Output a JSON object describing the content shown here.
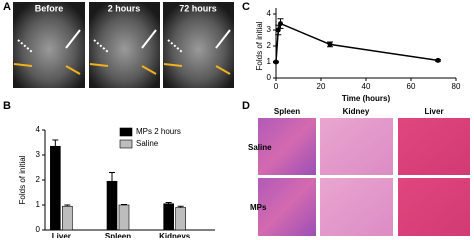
{
  "panels": {
    "labels": [
      "A",
      "B",
      "C",
      "D"
    ],
    "a_timepoints": [
      "Before",
      "2 hours",
      "72 hours"
    ],
    "d_columns": [
      "Spleen",
      "Kidney",
      "Liver"
    ],
    "d_rows": [
      "Saline",
      "MPs"
    ]
  },
  "chart_data": [
    {
      "type": "bar",
      "ylabel": "Folds of initial",
      "categories": [
        "Liver",
        "Spleen",
        "Kidneys"
      ],
      "series": [
        {
          "name": "MPs 2 hours",
          "color": "#000000",
          "values": [
            3.35,
            1.95,
            1.05
          ],
          "errors": [
            0.25,
            0.35,
            0.05
          ]
        },
        {
          "name": "Saline",
          "color": "#bdbdbd",
          "values": [
            0.95,
            1.0,
            0.9
          ],
          "errors": [
            0.05,
            0.02,
            0.05
          ]
        }
      ],
      "ylim": [
        0,
        4
      ],
      "yticks": [
        0,
        1,
        2,
        3,
        4
      ],
      "legend": "upper right"
    },
    {
      "type": "line",
      "xlabel": "Time (hours)",
      "ylabel": "Folds of initial",
      "x": [
        0,
        1,
        2,
        24,
        72
      ],
      "values": [
        1,
        3.0,
        3.4,
        2.1,
        1.1
      ],
      "errors": [
        0.05,
        0.3,
        0.3,
        0.15,
        0.05
      ],
      "color": "#000000",
      "xlim": [
        0,
        80
      ],
      "xticks": [
        0,
        20,
        40,
        60,
        80
      ],
      "ylim": [
        0,
        4
      ],
      "yticks": [
        0,
        1,
        2,
        3,
        4
      ]
    }
  ]
}
